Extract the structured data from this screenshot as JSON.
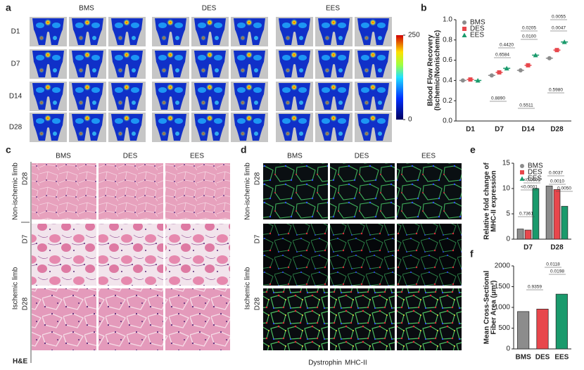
{
  "panels": {
    "a": {
      "label": "a",
      "columns": [
        "BMS",
        "DES",
        "EES"
      ],
      "rows": [
        "D1",
        "D7",
        "D14",
        "D28"
      ],
      "colorbar_ticks": [
        0,
        250
      ]
    },
    "c": {
      "label": "c",
      "columns": [
        "BMS",
        "DES",
        "EES"
      ],
      "groups": [
        "Non-ischemic limb",
        "Ischemic limb"
      ],
      "rows": [
        "D28",
        "D7",
        "D28"
      ],
      "stain": "H&E"
    },
    "d": {
      "label": "d",
      "columns": [
        "BMS",
        "DES",
        "EES"
      ],
      "groups": [
        "Non-ischemic limb",
        "Ischemic limb"
      ],
      "rows": [
        "D28",
        "D7",
        "D28"
      ],
      "stains": [
        "Dystrophin",
        "MHC-II"
      ]
    }
  },
  "chart_data": [
    {
      "label": "b",
      "type": "dot",
      "ylabel": [
        "Blood Flow Recovery",
        "(Ischemic/Nonischemic)"
      ],
      "categories": [
        "D1",
        "D7",
        "D14",
        "D28"
      ],
      "series": [
        {
          "name": "BMS",
          "color": "#8c8c8c",
          "marker": "circle",
          "values": [
            0.4,
            0.45,
            0.5,
            0.62
          ]
        },
        {
          "name": "DES",
          "color": "#e8474c",
          "marker": "square",
          "values": [
            0.41,
            0.48,
            0.55,
            0.7
          ]
        },
        {
          "name": "EES",
          "color": "#1a9a6c",
          "marker": "triangle",
          "values": [
            0.4,
            0.52,
            0.65,
            0.78
          ]
        }
      ],
      "ylim": [
        0,
        1
      ],
      "yticks": [
        {
          "value": 0,
          "label": "0.0"
        },
        0.2,
        0.4,
        0.6,
        0.8,
        {
          "value": 1,
          "label": "1.0"
        }
      ],
      "annotations": [
        "0.4420",
        "0.6584",
        "0.8890",
        "0.0205",
        "0.0100",
        "0.5511",
        "0.0055",
        "0.0047",
        "0.5980"
      ],
      "legend": "top-left"
    },
    {
      "label": "e",
      "type": "bar",
      "ylabel": [
        "Relative fold change of",
        "MHC-II expression"
      ],
      "categories": [
        "D7",
        "D28"
      ],
      "series": [
        {
          "name": "BMS",
          "color": "#8c8c8c",
          "marker": "circle",
          "values": [
            2.0,
            10.5
          ]
        },
        {
          "name": "DES",
          "color": "#e8474c",
          "marker": "square",
          "values": [
            1.8,
            9.8
          ]
        },
        {
          "name": "EES",
          "color": "#1a9a6c",
          "marker": "triangle",
          "values": [
            10.0,
            6.5
          ]
        }
      ],
      "ylim": [
        0,
        15
      ],
      "yticks": [
        0,
        5,
        10,
        15
      ],
      "annotations": [
        "<0.0001",
        "<0.0001",
        "0.7361",
        "0.0037",
        "0.0010",
        "0.0050"
      ],
      "legend": "top-left"
    },
    {
      "label": "f",
      "type": "bar",
      "ylabel": [
        "Mean Cross-Sectional",
        "Fiber Area (μm²)"
      ],
      "categories": [
        "BMS",
        "DES",
        "EES"
      ],
      "values": [
        900,
        960,
        1320
      ],
      "colors": [
        "#8c8c8c",
        "#e8474c",
        "#1a9a6c"
      ],
      "ylim": [
        0,
        2000
      ],
      "yticks": [
        0,
        500,
        1000,
        1500,
        2000
      ],
      "annotations": [
        "0.9359",
        "0.0118",
        "0.0198"
      ]
    }
  ]
}
